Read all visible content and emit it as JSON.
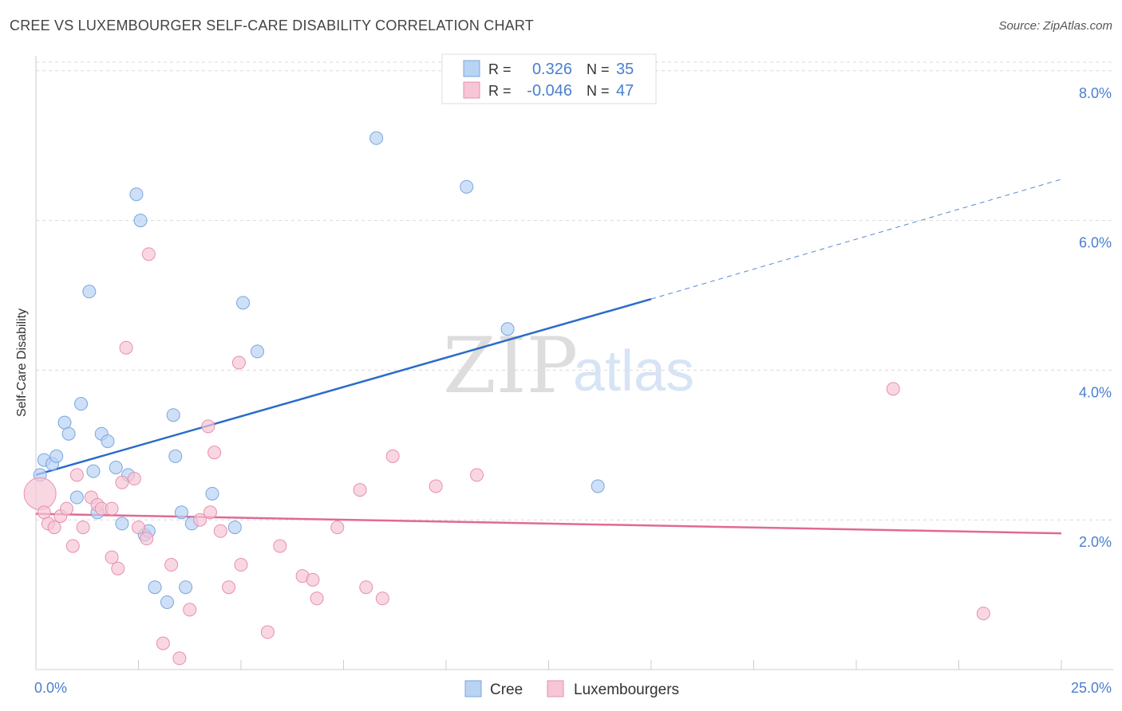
{
  "title": "CREE VS LUXEMBOURGER SELF-CARE DISABILITY CORRELATION CHART",
  "source": "Source: ZipAtlas.com",
  "watermark": {
    "zip": "ZIP",
    "atlas": "atlas"
  },
  "colors": {
    "cree_fill": "#b9d3f3",
    "cree_stroke": "#7aa6de",
    "cree_line": "#2b6cc8",
    "lux_fill": "#f6c6d6",
    "lux_stroke": "#e88fad",
    "lux_line": "#e06a94",
    "grid": "#d9d9d9",
    "axis_label": "#4a7fd0",
    "text": "#333333"
  },
  "legend_box": [
    {
      "r_label": "R =",
      "r_value": "0.326",
      "n_label": "N =",
      "n_value": "35"
    },
    {
      "r_label": "R =",
      "r_value": "-0.046",
      "n_label": "N =",
      "n_value": "47"
    }
  ],
  "chart_data": {
    "type": "scatter",
    "title": "CREE VS LUXEMBOURGER SELF-CARE DISABILITY CORRELATION CHART",
    "xlabel": "",
    "ylabel": "Self-Care Disability",
    "xlim": [
      0,
      25
    ],
    "ylim": [
      0,
      8.2
    ],
    "x_tick_labels": [
      "0.0%",
      "25.0%"
    ],
    "y_ticks": [
      2,
      4,
      6,
      8
    ],
    "y_tick_labels": [
      "2.0%",
      "4.0%",
      "6.0%",
      "8.0%"
    ],
    "legend_position": "bottom-center",
    "grid": true,
    "series": [
      {
        "name": "Cree",
        "color": "#b9d3f3",
        "points": [
          [
            0.1,
            2.6
          ],
          [
            0.2,
            2.8
          ],
          [
            0.4,
            2.75
          ],
          [
            0.5,
            2.85
          ],
          [
            0.7,
            3.3
          ],
          [
            0.8,
            3.15
          ],
          [
            1.0,
            2.3
          ],
          [
            1.1,
            3.55
          ],
          [
            1.3,
            5.05
          ],
          [
            1.4,
            2.65
          ],
          [
            1.5,
            2.1
          ],
          [
            1.6,
            3.15
          ],
          [
            1.75,
            3.05
          ],
          [
            1.95,
            2.7
          ],
          [
            2.1,
            1.95
          ],
          [
            2.25,
            2.6
          ],
          [
            2.45,
            6.35
          ],
          [
            2.55,
            6.0
          ],
          [
            2.65,
            1.8
          ],
          [
            2.75,
            1.85
          ],
          [
            2.9,
            1.1
          ],
          [
            3.2,
            0.9
          ],
          [
            3.35,
            3.4
          ],
          [
            3.4,
            2.85
          ],
          [
            3.55,
            2.1
          ],
          [
            3.65,
            1.1
          ],
          [
            3.8,
            1.95
          ],
          [
            4.3,
            2.35
          ],
          [
            4.85,
            1.9
          ],
          [
            5.05,
            4.9
          ],
          [
            5.4,
            4.25
          ],
          [
            8.3,
            7.1
          ],
          [
            10.5,
            6.45
          ],
          [
            11.5,
            4.55
          ],
          [
            13.7,
            2.45
          ]
        ],
        "trend": {
          "x": [
            0,
            15
          ],
          "y": [
            2.6,
            4.95
          ],
          "dashed_x": [
            15,
            25
          ],
          "dashed_y": [
            4.95,
            6.55
          ]
        }
      },
      {
        "name": "Luxembourgers",
        "color": "#f6c6d6",
        "points": [
          [
            0.1,
            2.35
          ],
          [
            0.2,
            2.1
          ],
          [
            0.3,
            1.95
          ],
          [
            0.45,
            1.9
          ],
          [
            0.6,
            2.05
          ],
          [
            0.75,
            2.15
          ],
          [
            0.9,
            1.65
          ],
          [
            1.0,
            2.6
          ],
          [
            1.15,
            1.9
          ],
          [
            1.35,
            2.3
          ],
          [
            1.5,
            2.2
          ],
          [
            1.6,
            2.15
          ],
          [
            1.85,
            2.15
          ],
          [
            1.85,
            1.5
          ],
          [
            2.0,
            1.35
          ],
          [
            2.1,
            2.5
          ],
          [
            2.2,
            4.3
          ],
          [
            2.4,
            2.55
          ],
          [
            2.5,
            1.9
          ],
          [
            2.7,
            1.75
          ],
          [
            2.75,
            5.55
          ],
          [
            3.1,
            0.35
          ],
          [
            3.3,
            1.4
          ],
          [
            3.5,
            0.15
          ],
          [
            3.75,
            0.8
          ],
          [
            4.0,
            2.0
          ],
          [
            4.2,
            3.25
          ],
          [
            4.25,
            2.1
          ],
          [
            4.35,
            2.9
          ],
          [
            4.5,
            1.85
          ],
          [
            4.7,
            1.1
          ],
          [
            4.95,
            4.1
          ],
          [
            5.0,
            1.4
          ],
          [
            5.65,
            0.5
          ],
          [
            5.95,
            1.65
          ],
          [
            6.5,
            1.25
          ],
          [
            6.75,
            1.2
          ],
          [
            6.85,
            0.95
          ],
          [
            7.35,
            1.9
          ],
          [
            7.9,
            2.4
          ],
          [
            8.05,
            1.1
          ],
          [
            8.45,
            0.95
          ],
          [
            8.7,
            2.85
          ],
          [
            9.75,
            2.45
          ],
          [
            10.75,
            2.6
          ],
          [
            20.9,
            3.75
          ],
          [
            23.1,
            0.75
          ]
        ],
        "trend": {
          "x": [
            0,
            25
          ],
          "y": [
            2.08,
            1.82
          ]
        }
      }
    ]
  }
}
